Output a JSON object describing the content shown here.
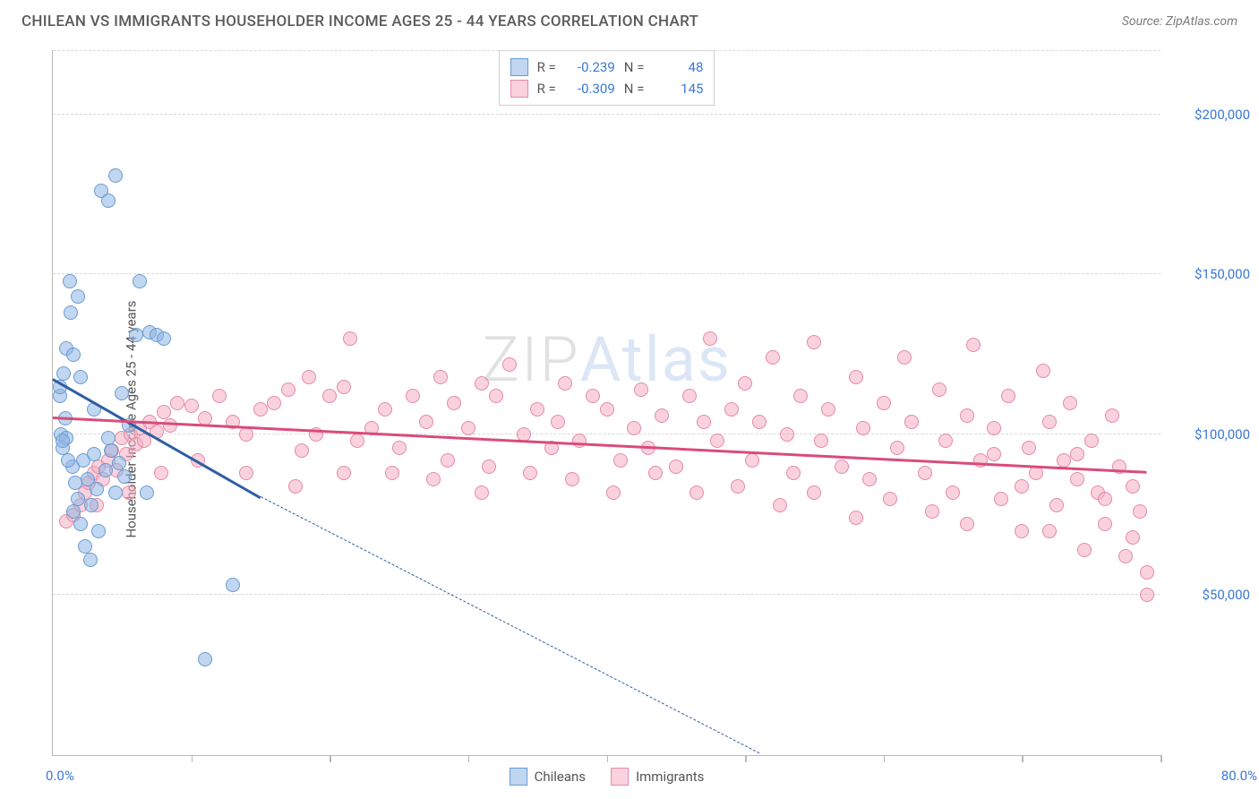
{
  "header": {
    "title": "CHILEAN VS IMMIGRANTS HOUSEHOLDER INCOME AGES 25 - 44 YEARS CORRELATION CHART",
    "source_label": "Source: ZipAtlas.com"
  },
  "chart": {
    "type": "scatter",
    "ylabel": "Householder Income Ages 25 - 44 years",
    "xlim": [
      0,
      80
    ],
    "ylim": [
      0,
      220000
    ],
    "x_start_label": "0.0%",
    "x_end_label": "80.0%",
    "x_ticks": [
      10,
      20,
      30,
      40,
      50,
      60,
      70,
      80
    ],
    "y_gridlines": [
      50000,
      100000,
      150000,
      200000
    ],
    "y_tick_labels": [
      "$50,000",
      "$100,000",
      "$150,000",
      "$200,000"
    ],
    "grid_color": "#d8d8d8",
    "axis_color": "#b9b9b9",
    "tick_label_color": "#3b78d8",
    "background_color": "#ffffff",
    "point_radius": 8,
    "point_stroke_width": 1.5,
    "watermark": {
      "part1": "ZIP",
      "part2": "Atlas"
    },
    "series": [
      {
        "key": "chileans",
        "label": "Chileans",
        "fill": "rgba(142,180,227,0.55)",
        "stroke": "#6a9bd1",
        "trend_color": "#2f5fa2",
        "stats": {
          "R": "-0.239",
          "N": "48"
        },
        "trend": {
          "x1": 0,
          "y1": 117000,
          "x2": 15,
          "y2": 80000,
          "dash_to_x": 51,
          "dash_to_y": 0
        },
        "points": [
          [
            0.5,
            112000
          ],
          [
            0.5,
            115000
          ],
          [
            0.8,
            119000
          ],
          [
            0.6,
            100000
          ],
          [
            0.7,
            96000
          ],
          [
            1.0,
            127000
          ],
          [
            1.2,
            148000
          ],
          [
            1.3,
            138000
          ],
          [
            1.5,
            125000
          ],
          [
            1.8,
            143000
          ],
          [
            2.0,
            118000
          ],
          [
            1.0,
            99000
          ],
          [
            1.4,
            90000
          ],
          [
            1.6,
            85000
          ],
          [
            1.8,
            80000
          ],
          [
            2.2,
            92000
          ],
          [
            2.5,
            86000
          ],
          [
            2.8,
            78000
          ],
          [
            3.0,
            108000
          ],
          [
            3.3,
            70000
          ],
          [
            3.5,
            176000
          ],
          [
            4.0,
            173000
          ],
          [
            4.5,
            181000
          ],
          [
            3.0,
            94000
          ],
          [
            3.2,
            83000
          ],
          [
            3.8,
            89000
          ],
          [
            4.2,
            95000
          ],
          [
            4.5,
            82000
          ],
          [
            5.0,
            113000
          ],
          [
            5.5,
            103000
          ],
          [
            6.0,
            131000
          ],
          [
            6.3,
            148000
          ],
          [
            7.0,
            132000
          ],
          [
            7.5,
            131000
          ],
          [
            8.0,
            130000
          ],
          [
            0.7,
            98000
          ],
          [
            1.1,
            92000
          ],
          [
            1.5,
            76000
          ],
          [
            2.0,
            72000
          ],
          [
            2.3,
            65000
          ],
          [
            2.7,
            61000
          ],
          [
            4.0,
            99000
          ],
          [
            4.8,
            91000
          ],
          [
            5.2,
            87000
          ],
          [
            11.0,
            30000
          ],
          [
            13.0,
            53000
          ],
          [
            6.8,
            82000
          ],
          [
            0.9,
            105000
          ]
        ]
      },
      {
        "key": "immigrants",
        "label": "Immigrants",
        "fill": "rgba(244,173,193,0.55)",
        "stroke": "#e48aa5",
        "trend_color": "#d94c7a",
        "stats": {
          "R": "-0.309",
          "N": "145"
        },
        "trend": {
          "x1": 0,
          "y1": 105000,
          "x2": 79,
          "y2": 88000
        },
        "points": [
          [
            1.0,
            73000
          ],
          [
            1.5,
            75000
          ],
          [
            2.0,
            78000
          ],
          [
            2.3,
            82000
          ],
          [
            2.6,
            85000
          ],
          [
            3.0,
            88000
          ],
          [
            3.3,
            90000
          ],
          [
            3.6,
            86000
          ],
          [
            4.0,
            92000
          ],
          [
            4.3,
            95000
          ],
          [
            4.6,
            89000
          ],
          [
            5.0,
            99000
          ],
          [
            5.3,
            94000
          ],
          [
            5.6,
            100000
          ],
          [
            6.0,
            97000
          ],
          [
            6.3,
            102000
          ],
          [
            6.6,
            98000
          ],
          [
            7.0,
            104000
          ],
          [
            7.5,
            101000
          ],
          [
            8.0,
            107000
          ],
          [
            8.5,
            103000
          ],
          [
            9.0,
            110000
          ],
          [
            10.0,
            109000
          ],
          [
            11.0,
            105000
          ],
          [
            12.0,
            112000
          ],
          [
            13.0,
            104000
          ],
          [
            14.0,
            100000
          ],
          [
            15.0,
            108000
          ],
          [
            16.0,
            110000
          ],
          [
            17.0,
            114000
          ],
          [
            18.0,
            95000
          ],
          [
            18.5,
            118000
          ],
          [
            19.0,
            100000
          ],
          [
            20.0,
            112000
          ],
          [
            21.0,
            115000
          ],
          [
            21.5,
            130000
          ],
          [
            22.0,
            98000
          ],
          [
            23.0,
            102000
          ],
          [
            24.0,
            108000
          ],
          [
            25.0,
            96000
          ],
          [
            26.0,
            112000
          ],
          [
            27.0,
            104000
          ],
          [
            28.0,
            118000
          ],
          [
            28.5,
            92000
          ],
          [
            29.0,
            110000
          ],
          [
            30.0,
            102000
          ],
          [
            31.0,
            116000
          ],
          [
            31.5,
            90000
          ],
          [
            32.0,
            112000
          ],
          [
            33.0,
            122000
          ],
          [
            34.0,
            100000
          ],
          [
            35.0,
            108000
          ],
          [
            36.0,
            96000
          ],
          [
            36.5,
            104000
          ],
          [
            37.0,
            116000
          ],
          [
            38.0,
            98000
          ],
          [
            39.0,
            112000
          ],
          [
            40.0,
            108000
          ],
          [
            41.0,
            92000
          ],
          [
            42.0,
            102000
          ],
          [
            42.5,
            114000
          ],
          [
            43.0,
            96000
          ],
          [
            44.0,
            106000
          ],
          [
            45.0,
            90000
          ],
          [
            46.0,
            112000
          ],
          [
            47.0,
            104000
          ],
          [
            47.5,
            130000
          ],
          [
            48.0,
            98000
          ],
          [
            49.0,
            108000
          ],
          [
            50.0,
            116000
          ],
          [
            50.5,
            92000
          ],
          [
            51.0,
            104000
          ],
          [
            52.0,
            124000
          ],
          [
            53.0,
            100000
          ],
          [
            53.5,
            88000
          ],
          [
            54.0,
            112000
          ],
          [
            55.0,
            129000
          ],
          [
            55.5,
            98000
          ],
          [
            56.0,
            108000
          ],
          [
            57.0,
            90000
          ],
          [
            58.0,
            118000
          ],
          [
            58.5,
            102000
          ],
          [
            59.0,
            86000
          ],
          [
            60.0,
            110000
          ],
          [
            61.0,
            96000
          ],
          [
            61.5,
            124000
          ],
          [
            62.0,
            104000
          ],
          [
            63.0,
            88000
          ],
          [
            64.0,
            114000
          ],
          [
            64.5,
            98000
          ],
          [
            65.0,
            82000
          ],
          [
            66.0,
            106000
          ],
          [
            66.5,
            128000
          ],
          [
            67.0,
            92000
          ],
          [
            68.0,
            102000
          ],
          [
            68.5,
            80000
          ],
          [
            69.0,
            112000
          ],
          [
            70.0,
            70000
          ],
          [
            70.5,
            96000
          ],
          [
            71.0,
            88000
          ],
          [
            71.5,
            120000
          ],
          [
            72.0,
            104000
          ],
          [
            72.5,
            78000
          ],
          [
            73.0,
            92000
          ],
          [
            73.5,
            110000
          ],
          [
            74.0,
            86000
          ],
          [
            74.5,
            64000
          ],
          [
            75.0,
            98000
          ],
          [
            75.5,
            82000
          ],
          [
            76.0,
            72000
          ],
          [
            76.5,
            106000
          ],
          [
            77.0,
            90000
          ],
          [
            77.5,
            62000
          ],
          [
            78.0,
            84000
          ],
          [
            78.5,
            76000
          ],
          [
            79.0,
            50000
          ],
          [
            79.0,
            57000
          ],
          [
            78.0,
            68000
          ],
          [
            76.0,
            80000
          ],
          [
            74.0,
            94000
          ],
          [
            72.0,
            70000
          ],
          [
            70.0,
            84000
          ],
          [
            68.0,
            94000
          ],
          [
            66.0,
            72000
          ],
          [
            63.5,
            76000
          ],
          [
            60.5,
            80000
          ],
          [
            58.0,
            74000
          ],
          [
            55.0,
            82000
          ],
          [
            52.5,
            78000
          ],
          [
            49.5,
            84000
          ],
          [
            46.5,
            82000
          ],
          [
            43.5,
            88000
          ],
          [
            40.5,
            82000
          ],
          [
            37.5,
            86000
          ],
          [
            34.5,
            88000
          ],
          [
            31.0,
            82000
          ],
          [
            27.5,
            86000
          ],
          [
            24.5,
            88000
          ],
          [
            21.0,
            88000
          ],
          [
            17.5,
            84000
          ],
          [
            14.0,
            88000
          ],
          [
            10.5,
            92000
          ],
          [
            7.8,
            88000
          ],
          [
            5.5,
            82000
          ],
          [
            3.2,
            78000
          ]
        ]
      }
    ],
    "stats_box": {
      "r_label": "R =",
      "n_label": "N ="
    },
    "legend": {
      "series1": "Chileans",
      "series2": "Immigrants"
    }
  }
}
